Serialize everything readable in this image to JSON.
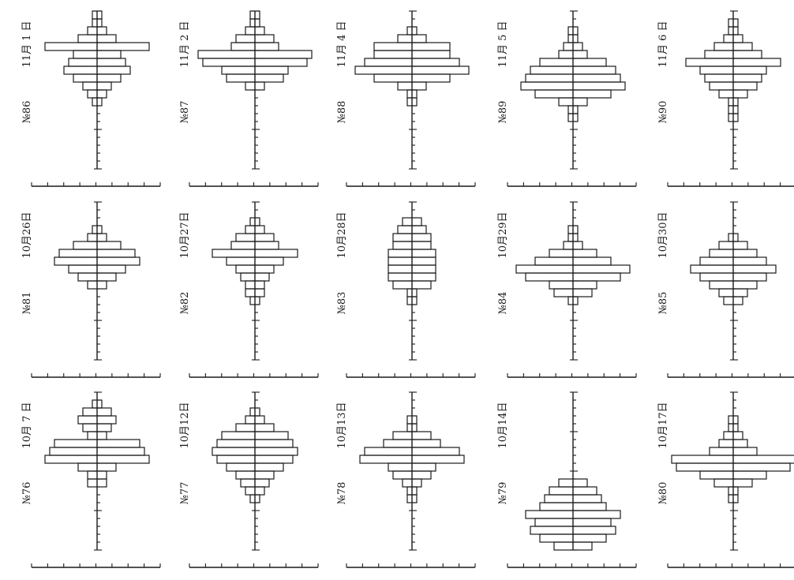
{
  "chart_data": [
    {
      "type": "bar",
      "number": "№86",
      "date": "11月 1 日",
      "values": [
        1,
        1,
        2,
        4,
        11,
        5,
        6,
        7,
        5,
        3,
        2,
        1,
        0,
        0,
        0,
        0,
        0,
        0,
        0,
        0
      ]
    },
    {
      "type": "bar",
      "number": "№87",
      "date": "11月 2 日",
      "values": [
        1,
        1,
        2,
        4,
        5,
        12,
        11,
        7,
        6,
        2,
        0,
        0,
        0,
        0,
        0,
        0,
        0,
        0,
        0,
        0
      ]
    },
    {
      "type": "bar",
      "number": "№88",
      "date": "11月 4 日",
      "values": [
        0,
        0,
        1,
        3,
        8,
        8,
        10,
        12,
        8,
        3,
        1,
        1,
        0,
        0,
        0,
        0,
        0,
        0,
        0,
        0
      ]
    },
    {
      "type": "bar",
      "number": "№89",
      "date": "11月 5 日",
      "values": [
        0,
        0,
        1,
        1,
        2,
        3,
        7,
        9,
        10,
        11,
        8,
        3,
        1,
        1,
        0,
        0,
        0,
        0,
        0,
        0
      ]
    },
    {
      "type": "bar",
      "number": "№90",
      "date": "11月 6 日",
      "values": [
        0,
        1,
        1,
        2,
        4,
        6,
        10,
        7,
        6,
        5,
        3,
        1,
        1,
        1,
        0,
        0,
        0,
        0,
        0,
        0
      ]
    },
    {
      "type": "bar",
      "number": "№81",
      "date": "10月26日",
      "values": [
        0,
        0,
        0,
        1,
        2,
        5,
        8,
        9,
        6,
        4,
        2,
        0,
        0,
        0,
        0,
        0,
        0,
        0,
        0,
        0
      ]
    },
    {
      "type": "bar",
      "number": "№82",
      "date": "10月27日",
      "values": [
        0,
        0,
        1,
        2,
        4,
        5,
        9,
        6,
        4,
        3,
        2,
        2,
        1,
        0,
        0,
        0,
        0,
        0,
        0,
        0
      ]
    },
    {
      "type": "bar",
      "number": "№83",
      "date": "10月28日",
      "values": [
        0,
        0,
        2,
        3,
        4,
        4,
        5,
        5,
        5,
        5,
        4,
        1,
        1,
        0,
        0,
        0,
        0,
        0,
        0,
        0
      ]
    },
    {
      "type": "bar",
      "number": "№84",
      "date": "10月29日",
      "values": [
        0,
        0,
        0,
        1,
        1,
        2,
        5,
        8,
        12,
        10,
        5,
        4,
        1,
        0,
        0,
        0,
        0,
        0,
        0,
        0
      ]
    },
    {
      "type": "bar",
      "number": "№85",
      "date": "10月30日",
      "values": [
        0,
        0,
        0,
        0,
        1,
        3,
        5,
        7,
        9,
        7,
        5,
        3,
        2,
        0,
        0,
        0,
        0,
        0,
        0,
        0
      ]
    },
    {
      "type": "bar",
      "number": "№76",
      "date": "10月 7 日",
      "values": [
        0,
        1,
        3,
        4,
        3,
        2,
        9,
        10,
        11,
        4,
        2,
        2,
        0,
        0,
        0,
        0,
        0,
        0,
        0,
        0
      ]
    },
    {
      "type": "bar",
      "number": "№77",
      "date": "10月12日",
      "values": [
        0,
        0,
        1,
        2,
        4,
        7,
        8,
        9,
        8,
        6,
        4,
        3,
        2,
        1,
        0,
        0,
        0,
        0,
        0,
        0
      ]
    },
    {
      "type": "bar",
      "number": "№78",
      "date": "10月13日",
      "values": [
        0,
        0,
        0,
        1,
        1,
        4,
        6,
        10,
        11,
        5,
        4,
        2,
        1,
        1,
        0,
        0,
        0,
        0,
        0,
        0
      ]
    },
    {
      "type": "bar",
      "number": "№79",
      "date": "10月14日",
      "values": [
        0,
        0,
        0,
        0,
        0,
        0,
        0,
        0,
        0,
        0,
        0,
        3,
        5,
        6,
        7,
        10,
        8,
        9,
        7,
        4
      ]
    },
    {
      "type": "bar",
      "number": "№80",
      "date": "10月17日",
      "values": [
        0,
        0,
        0,
        1,
        1,
        2,
        3,
        5,
        13,
        12,
        7,
        4,
        1,
        1,
        0,
        0,
        0,
        0,
        0,
        0
      ]
    }
  ]
}
